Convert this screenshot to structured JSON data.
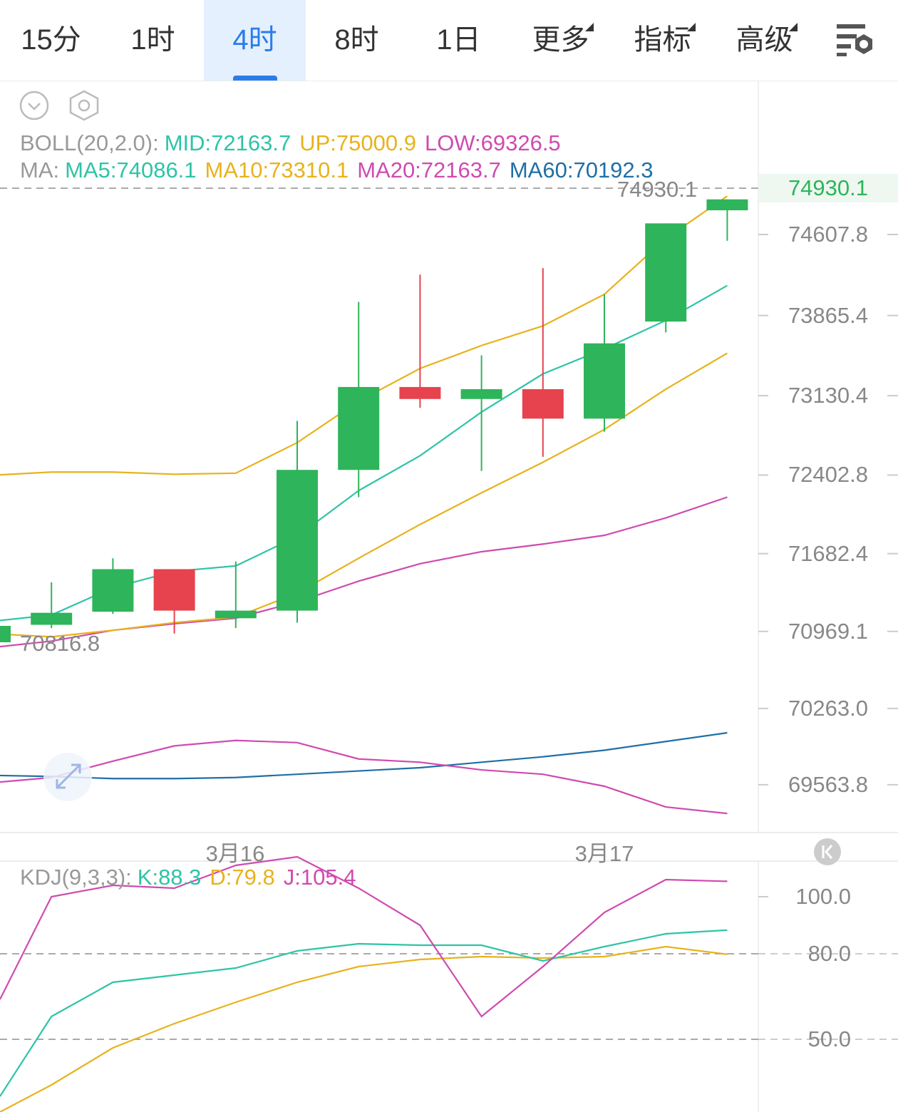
{
  "tabs": [
    {
      "label": "15分",
      "active": false,
      "dropdown": false
    },
    {
      "label": "1时",
      "active": false,
      "dropdown": false
    },
    {
      "label": "4时",
      "active": true,
      "dropdown": false
    },
    {
      "label": "8时",
      "active": false,
      "dropdown": false
    },
    {
      "label": "1日",
      "active": false,
      "dropdown": false
    },
    {
      "label": "更多",
      "active": false,
      "dropdown": true
    },
    {
      "label": "指标",
      "active": false,
      "dropdown": true
    },
    {
      "label": "高级",
      "active": false,
      "dropdown": true
    }
  ],
  "toolbar": {
    "settings_icon": "chart-settings-icon",
    "collapse_icon": "chevron-down-circle-icon",
    "gear_icon": "hexagon-gear-icon",
    "scroll_icon": "scroll-to-latest-icon",
    "expand_icon": "expand-arrows-icon"
  },
  "legend": {
    "boll": {
      "name": "BOLL(20,2.0):",
      "mid": "MID:72163.7",
      "up": "UP:75000.9",
      "low": "LOW:69326.5"
    },
    "ma": {
      "name": "MA:",
      "ma5": "MA5:74086.1",
      "ma10": "MA10:73310.1",
      "ma20": "MA20:72163.7",
      "ma60": "MA60:70192.3"
    },
    "kdj": {
      "name": "KDJ(9,3,3):",
      "k": "K:88.3",
      "d": "D:79.8",
      "j": "J:105.4"
    }
  },
  "main": {
    "current_price": "74930.1",
    "high_label": "74930.1",
    "low_label": "70816.8",
    "y_labels": [
      "74607.8",
      "73865.4",
      "73130.4",
      "72402.8",
      "71682.4",
      "70969.1",
      "70263.0",
      "69563.8"
    ]
  },
  "x_labels": [
    "3月16",
    "3月17"
  ],
  "kdj_axis": [
    "100.0",
    "80.0",
    "50.0"
  ],
  "colors": {
    "up": "#2eb45a",
    "down": "#e6434f",
    "mid": "#2ec4a6",
    "upper": "#e8b21c",
    "lower": "#cf4bb0",
    "ma60": "#1f6fa6",
    "active": "#2b7ce9"
  },
  "chart_data": {
    "type": "candlestick",
    "note_colors": "green = up, red = down",
    "candles": [
      {
        "open": 70870,
        "close": 71020,
        "high": 71050,
        "low": 70850
      },
      {
        "open": 71030,
        "close": 71140,
        "high": 71420,
        "low": 71000
      },
      {
        "open": 71150,
        "close": 71540,
        "high": 71640,
        "low": 71130
      },
      {
        "open": 71540,
        "close": 71160,
        "high": 71540,
        "low": 70950
      },
      {
        "open": 71090,
        "close": 71160,
        "high": 71610,
        "low": 71000
      },
      {
        "open": 71160,
        "close": 72450,
        "high": 72900,
        "low": 71050
      },
      {
        "open": 72450,
        "close": 73210,
        "high": 73990,
        "low": 72200
      },
      {
        "open": 73210,
        "close": 73100,
        "high": 74240,
        "low": 73020
      },
      {
        "open": 73100,
        "close": 73190,
        "high": 73500,
        "low": 72440
      },
      {
        "open": 73190,
        "close": 72920,
        "high": 74300,
        "low": 72570
      },
      {
        "open": 72920,
        "close": 73610,
        "high": 74060,
        "low": 72800
      },
      {
        "open": 73810,
        "close": 74710,
        "high": 74710,
        "low": 73710
      },
      {
        "open": 74830,
        "close": 74930,
        "high": 74930,
        "low": 74550
      }
    ],
    "boll_up": [
      72400,
      72430,
      72430,
      72410,
      72420,
      72700,
      73080,
      73380,
      73590,
      73770,
      74060,
      74570,
      74960
    ],
    "boll_mid": [
      71060,
      71120,
      71370,
      71520,
      71570,
      71840,
      72260,
      72580,
      72980,
      73330,
      73560,
      73820,
      74140
    ],
    "boll_lower": [
      70820,
      70880,
      70980,
      71040,
      71090,
      71240,
      71430,
      71590,
      71700,
      71770,
      71850,
      72010,
      72200
    ],
    "ma_yellow": [
      70950,
      70920,
      70980,
      71050,
      71100,
      71320,
      71640,
      71950,
      72240,
      72520,
      72820,
      73190,
      73520
    ],
    "ma60": [
      69650,
      69640,
      69620,
      69620,
      69630,
      69660,
      69690,
      69720,
      69770,
      69820,
      69880,
      69960,
      70040
    ],
    "ma_magenta": [
      69580,
      69630,
      69780,
      69920,
      69970,
      69950,
      69800,
      69770,
      69700,
      69660,
      69550,
      69360,
      69300
    ],
    "kdj_k": [
      30,
      58,
      70,
      72.5,
      75,
      81,
      83.5,
      83,
      83,
      77.5,
      82.5,
      87,
      88.3
    ],
    "kdj_d": [
      23,
      34,
      47,
      55.5,
      63,
      70,
      75.5,
      78,
      79,
      78.5,
      79,
      82.5,
      79.8
    ],
    "kdj_j": [
      64,
      100,
      104,
      103,
      111,
      114,
      103,
      90,
      58,
      75.5,
      94.5,
      106,
      105.4
    ]
  }
}
